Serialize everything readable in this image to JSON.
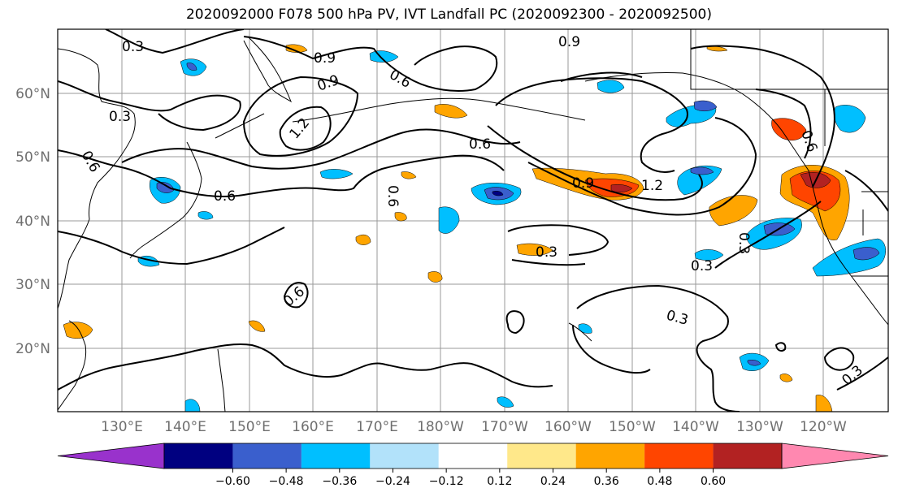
{
  "title": "2020092000 F078 500 hPa PV, IVT Landfall PC (2020092300 - 2020092500)",
  "map": {
    "lon_labels": [
      "130°E",
      "140°E",
      "150°E",
      "160°E",
      "170°E",
      "180°W",
      "170°W",
      "160°W",
      "150°W",
      "140°W",
      "130°W",
      "120°W"
    ],
    "lat_labels": [
      "60°N",
      "50°N",
      "40°N",
      "30°N",
      "20°N"
    ],
    "contour_labels": [
      "0.3",
      "0.3",
      "0.9",
      "0.9",
      "0.6",
      "0.9",
      "1.2",
      "0.6",
      "0.6",
      "0.6",
      "0.6",
      "1.2",
      "0.9",
      "0.6",
      "0.3",
      "0.3",
      "0.6",
      "0.3",
      "0.3",
      "0.3"
    ]
  },
  "colorbar": {
    "tick_labels": [
      "−0.60",
      "−0.48",
      "−0.36",
      "−0.24",
      "−0.12",
      "0.12",
      "0.24",
      "0.36",
      "0.48",
      "0.60"
    ],
    "colors": [
      "#9932cc",
      "#000080",
      "#3a5fcd",
      "#00bfff",
      "#b2e2fa",
      "#ffffff",
      "#ffe88a",
      "#ffa500",
      "#ff4500",
      "#b22222",
      "#ff88b0"
    ]
  }
}
